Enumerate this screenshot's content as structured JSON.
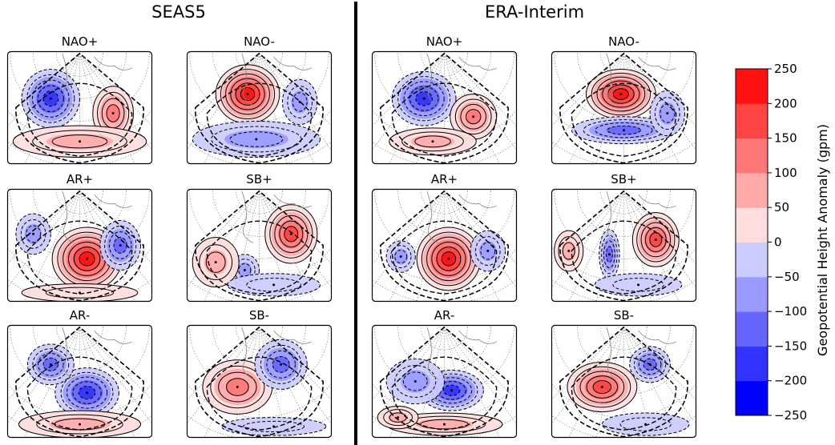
{
  "chart_data": {
    "type": "heatmap",
    "figure_titles": [
      "SEAS5",
      "ERA-Interim"
    ],
    "colorbar": {
      "label": "Geopotential Height Anomaly (gpm)",
      "ticks": [
        "250",
        "200",
        "150",
        "100",
        "50",
        "0",
        "−50",
        "−100",
        "−150",
        "−200",
        "−250"
      ],
      "levels": [
        -250,
        -200,
        -150,
        -100,
        -50,
        0,
        50,
        100,
        150,
        200,
        250
      ],
      "colors": [
        "#0000ff",
        "#3333ff",
        "#6666ff",
        "#9a9aff",
        "#ccccff",
        "#ffdddd",
        "#ffaaaa",
        "#ff7777",
        "#ff4444",
        "#ff1111"
      ]
    },
    "panels": [
      {
        "group": "SEAS5",
        "title": "NAO+",
        "blobs": [
          {
            "cx": 0.3,
            "cy": 0.42,
            "rx": 0.2,
            "ry": 0.26,
            "value": -175
          },
          {
            "cx": 0.73,
            "cy": 0.55,
            "rx": 0.14,
            "ry": 0.24,
            "value": 110
          },
          {
            "cx": 0.5,
            "cy": 0.8,
            "rx": 0.46,
            "ry": 0.14,
            "value": 60
          }
        ]
      },
      {
        "group": "SEAS5",
        "title": "NAO-",
        "blobs": [
          {
            "cx": 0.42,
            "cy": 0.38,
            "rx": 0.22,
            "ry": 0.26,
            "value": 215
          },
          {
            "cx": 0.48,
            "cy": 0.78,
            "rx": 0.44,
            "ry": 0.16,
            "value": -95
          },
          {
            "cx": 0.78,
            "cy": 0.45,
            "rx": 0.12,
            "ry": 0.2,
            "value": -70
          }
        ]
      },
      {
        "group": "SEAS5",
        "title": "AR+",
        "blobs": [
          {
            "cx": 0.55,
            "cy": 0.62,
            "rx": 0.24,
            "ry": 0.28,
            "value": 235
          },
          {
            "cx": 0.18,
            "cy": 0.4,
            "rx": 0.12,
            "ry": 0.18,
            "value": -90
          },
          {
            "cx": 0.78,
            "cy": 0.5,
            "rx": 0.14,
            "ry": 0.22,
            "value": -110
          },
          {
            "cx": 0.5,
            "cy": 0.92,
            "rx": 0.4,
            "ry": 0.08,
            "value": 40
          }
        ]
      },
      {
        "group": "SEAS5",
        "title": "SB+",
        "blobs": [
          {
            "cx": 0.72,
            "cy": 0.4,
            "rx": 0.18,
            "ry": 0.26,
            "value": 185
          },
          {
            "cx": 0.4,
            "cy": 0.72,
            "rx": 0.1,
            "ry": 0.14,
            "value": -85
          },
          {
            "cx": 0.2,
            "cy": 0.65,
            "rx": 0.16,
            "ry": 0.22,
            "value": 55
          },
          {
            "cx": 0.6,
            "cy": 0.85,
            "rx": 0.32,
            "ry": 0.1,
            "value": -40
          }
        ]
      },
      {
        "group": "SEAS5",
        "title": "AR-",
        "blobs": [
          {
            "cx": 0.55,
            "cy": 0.6,
            "rx": 0.22,
            "ry": 0.22,
            "value": -190
          },
          {
            "cx": 0.3,
            "cy": 0.35,
            "rx": 0.16,
            "ry": 0.18,
            "value": -130
          },
          {
            "cx": 0.5,
            "cy": 0.88,
            "rx": 0.42,
            "ry": 0.12,
            "value": 65
          }
        ]
      },
      {
        "group": "SEAS5",
        "title": "SB-",
        "blobs": [
          {
            "cx": 0.35,
            "cy": 0.55,
            "rx": 0.24,
            "ry": 0.24,
            "value": 130
          },
          {
            "cx": 0.65,
            "cy": 0.35,
            "rx": 0.18,
            "ry": 0.22,
            "value": -145
          },
          {
            "cx": 0.6,
            "cy": 0.9,
            "rx": 0.36,
            "ry": 0.08,
            "value": -40
          }
        ]
      },
      {
        "group": "ERA-Interim",
        "title": "NAO+",
        "blobs": [
          {
            "cx": 0.36,
            "cy": 0.42,
            "rx": 0.22,
            "ry": 0.24,
            "value": -185
          },
          {
            "cx": 0.7,
            "cy": 0.58,
            "rx": 0.16,
            "ry": 0.2,
            "value": 105
          },
          {
            "cx": 0.42,
            "cy": 0.8,
            "rx": 0.3,
            "ry": 0.12,
            "value": 75
          }
        ]
      },
      {
        "group": "ERA-Interim",
        "title": "NAO-",
        "blobs": [
          {
            "cx": 0.48,
            "cy": 0.38,
            "rx": 0.24,
            "ry": 0.22,
            "value": 225
          },
          {
            "cx": 0.5,
            "cy": 0.7,
            "rx": 0.36,
            "ry": 0.12,
            "value": -120
          },
          {
            "cx": 0.8,
            "cy": 0.55,
            "rx": 0.12,
            "ry": 0.2,
            "value": -60
          }
        ]
      },
      {
        "group": "ERA-Interim",
        "title": "AR+",
        "blobs": [
          {
            "cx": 0.53,
            "cy": 0.62,
            "rx": 0.22,
            "ry": 0.28,
            "value": 240
          },
          {
            "cx": 0.2,
            "cy": 0.6,
            "rx": 0.1,
            "ry": 0.14,
            "value": -90
          },
          {
            "cx": 0.8,
            "cy": 0.55,
            "rx": 0.12,
            "ry": 0.18,
            "value": -70
          }
        ]
      },
      {
        "group": "ERA-Interim",
        "title": "SB+",
        "blobs": [
          {
            "cx": 0.72,
            "cy": 0.45,
            "rx": 0.16,
            "ry": 0.24,
            "value": 180
          },
          {
            "cx": 0.4,
            "cy": 0.58,
            "rx": 0.07,
            "ry": 0.22,
            "value": -120
          },
          {
            "cx": 0.12,
            "cy": 0.55,
            "rx": 0.1,
            "ry": 0.18,
            "value": 55
          },
          {
            "cx": 0.6,
            "cy": 0.85,
            "rx": 0.3,
            "ry": 0.1,
            "value": -40
          }
        ]
      },
      {
        "group": "ERA-Interim",
        "title": "AR-",
        "blobs": [
          {
            "cx": 0.55,
            "cy": 0.58,
            "rx": 0.22,
            "ry": 0.18,
            "value": -195
          },
          {
            "cx": 0.3,
            "cy": 0.5,
            "rx": 0.2,
            "ry": 0.2,
            "value": -80
          },
          {
            "cx": 0.5,
            "cy": 0.88,
            "rx": 0.4,
            "ry": 0.1,
            "value": 70
          },
          {
            "cx": 0.18,
            "cy": 0.82,
            "rx": 0.14,
            "ry": 0.1,
            "value": 60
          }
        ]
      },
      {
        "group": "ERA-Interim",
        "title": "SB-",
        "blobs": [
          {
            "cx": 0.35,
            "cy": 0.55,
            "rx": 0.24,
            "ry": 0.22,
            "value": 195
          },
          {
            "cx": 0.68,
            "cy": 0.35,
            "rx": 0.14,
            "ry": 0.16,
            "value": -130
          },
          {
            "cx": 0.65,
            "cy": 0.88,
            "rx": 0.3,
            "ry": 0.1,
            "value": -40
          }
        ]
      }
    ]
  }
}
